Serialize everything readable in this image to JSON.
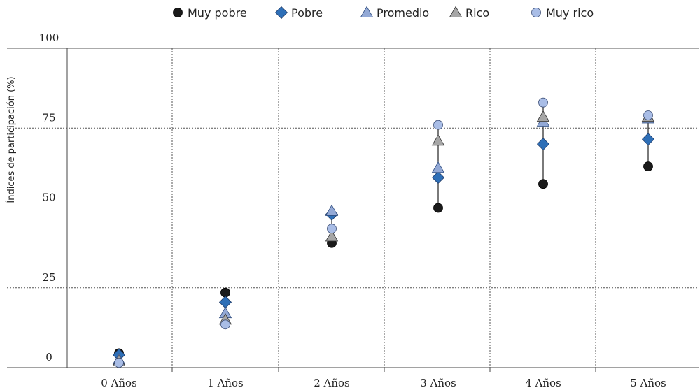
{
  "chart_data": {
    "type": "scatter",
    "title": "",
    "xlabel": "",
    "ylabel": "Índices de participación (%)",
    "categories": [
      "0 Años",
      "1 Años",
      "2 Años",
      "3 Años",
      "4 Años",
      "5 Años"
    ],
    "ylim": [
      0,
      100
    ],
    "yticks": [
      "0",
      "25",
      "50",
      "75",
      "100"
    ],
    "ytick_values": [
      0,
      25,
      50,
      75,
      100
    ],
    "grid": true,
    "legend_position": "top",
    "series": [
      {
        "name": "Muy pobre",
        "marker": "circle",
        "color": "#1a1a1a",
        "values": [
          4.5,
          23.5,
          39,
          50,
          57.5,
          63
        ]
      },
      {
        "name": "Pobre",
        "marker": "diamond",
        "color": "#2e6fb7",
        "values": [
          4,
          20.5,
          48,
          59.5,
          70,
          71.5
        ]
      },
      {
        "name": "Promedio",
        "marker": "triangle",
        "color": "#93a9d6",
        "values": [
          2.5,
          17,
          49,
          62.5,
          77,
          78
        ]
      },
      {
        "name": "Rico",
        "marker": "triangle",
        "color": "#a6a6a6",
        "values": [
          2,
          15,
          41,
          71,
          78.5,
          78.5
        ]
      },
      {
        "name": "Muy rico",
        "marker": "circle",
        "color": "#a9bde6",
        "values": [
          1.5,
          13.5,
          43.5,
          76,
          83,
          79
        ]
      }
    ]
  }
}
